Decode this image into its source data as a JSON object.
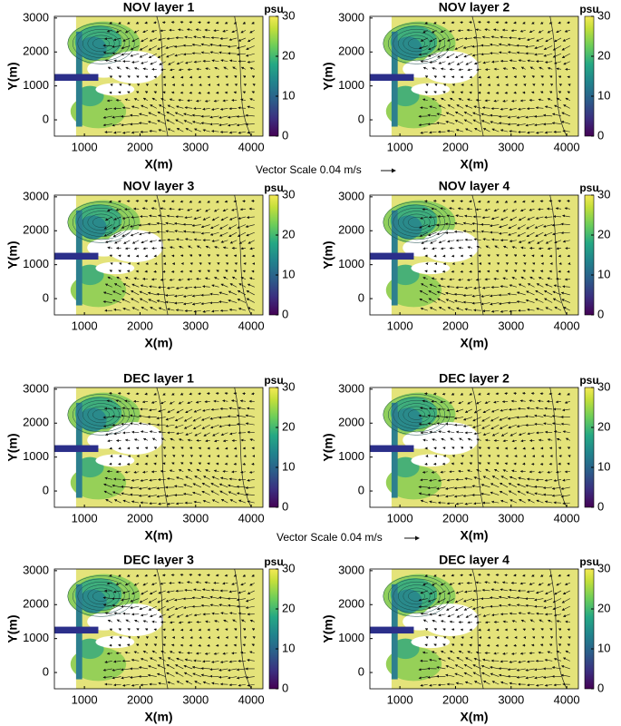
{
  "chart_data": [
    {
      "type": "contour",
      "title": "NOV layer 1",
      "xlabel": "X(m)",
      "ylabel": "Y(m)",
      "xlim": [
        460,
        4210
      ],
      "ylim": [
        -480,
        3050
      ],
      "xticks": [
        1000,
        2000,
        3000,
        4000
      ],
      "yticks": [
        0,
        1000,
        2000,
        3000
      ],
      "colorbar_label": "psu",
      "clim": [
        0,
        30
      ],
      "cticks": [
        0,
        10,
        20,
        30
      ]
    },
    {
      "type": "contour",
      "title": "NOV layer 2",
      "xlabel": "X(m)",
      "ylabel": "Y(m)",
      "xlim": [
        460,
        4210
      ],
      "ylim": [
        -480,
        3050
      ],
      "xticks": [
        1000,
        2000,
        3000,
        4000
      ],
      "yticks": [
        0,
        1000,
        2000,
        3000
      ],
      "colorbar_label": "psu",
      "clim": [
        0,
        30
      ],
      "cticks": [
        0,
        10,
        20,
        30
      ]
    },
    {
      "type": "contour",
      "title": "NOV layer 3",
      "xlabel": "X(m)",
      "ylabel": "Y(m)",
      "xlim": [
        460,
        4210
      ],
      "ylim": [
        -480,
        3050
      ],
      "xticks": [
        1000,
        2000,
        3000,
        4000
      ],
      "yticks": [
        0,
        1000,
        2000,
        3000
      ],
      "colorbar_label": "psu",
      "clim": [
        0,
        30
      ],
      "cticks": [
        0,
        10,
        20,
        30
      ]
    },
    {
      "type": "contour",
      "title": "NOV layer 4",
      "xlabel": "X(m)",
      "ylabel": "Y(m)",
      "xlim": [
        460,
        4210
      ],
      "ylim": [
        -480,
        3050
      ],
      "xticks": [
        1000,
        2000,
        3000,
        4000
      ],
      "yticks": [
        0,
        1000,
        2000,
        3000
      ],
      "colorbar_label": "psu",
      "clim": [
        0,
        30
      ],
      "cticks": [
        0,
        10,
        20,
        30
      ]
    },
    {
      "type": "contour",
      "title": "DEC layer 1",
      "xlabel": "X(m)",
      "ylabel": "Y(m)",
      "xlim": [
        460,
        4210
      ],
      "ylim": [
        -480,
        3050
      ],
      "xticks": [
        1000,
        2000,
        3000,
        4000
      ],
      "yticks": [
        0,
        1000,
        2000,
        3000
      ],
      "colorbar_label": "psu",
      "clim": [
        0,
        30
      ],
      "cticks": [
        0,
        10,
        20,
        30
      ]
    },
    {
      "type": "contour",
      "title": "DEC layer 2",
      "xlabel": "X(m)",
      "ylabel": "Y(m)",
      "xlim": [
        460,
        4210
      ],
      "ylim": [
        -480,
        3050
      ],
      "xticks": [
        1000,
        2000,
        3000,
        4000
      ],
      "yticks": [
        0,
        1000,
        2000,
        3000
      ],
      "colorbar_label": "psu",
      "clim": [
        0,
        30
      ],
      "cticks": [
        0,
        10,
        20,
        30
      ]
    },
    {
      "type": "contour",
      "title": "DEC layer 3",
      "xlabel": "X(m)",
      "ylabel": "Y(m)",
      "xlim": [
        460,
        4210
      ],
      "ylim": [
        -480,
        3050
      ],
      "xticks": [
        1000,
        2000,
        3000,
        4000
      ],
      "yticks": [
        0,
        1000,
        2000,
        3000
      ],
      "colorbar_label": "psu",
      "clim": [
        0,
        30
      ],
      "cticks": [
        0,
        10,
        20,
        30
      ]
    },
    {
      "type": "contour",
      "title": "DEC layer 4",
      "xlabel": "X(m)",
      "ylabel": "Y(m)",
      "xlim": [
        460,
        4210
      ],
      "ylim": [
        -480,
        3050
      ],
      "xticks": [
        1000,
        2000,
        3000,
        4000
      ],
      "yticks": [
        0,
        1000,
        2000,
        3000
      ],
      "colorbar_label": "psu",
      "clim": [
        0,
        30
      ],
      "cticks": [
        0,
        10,
        20,
        30
      ]
    }
  ],
  "annotations": [
    "Vector Scale 0.04 m/s",
    "Vector Scale 0.04 m/s"
  ]
}
